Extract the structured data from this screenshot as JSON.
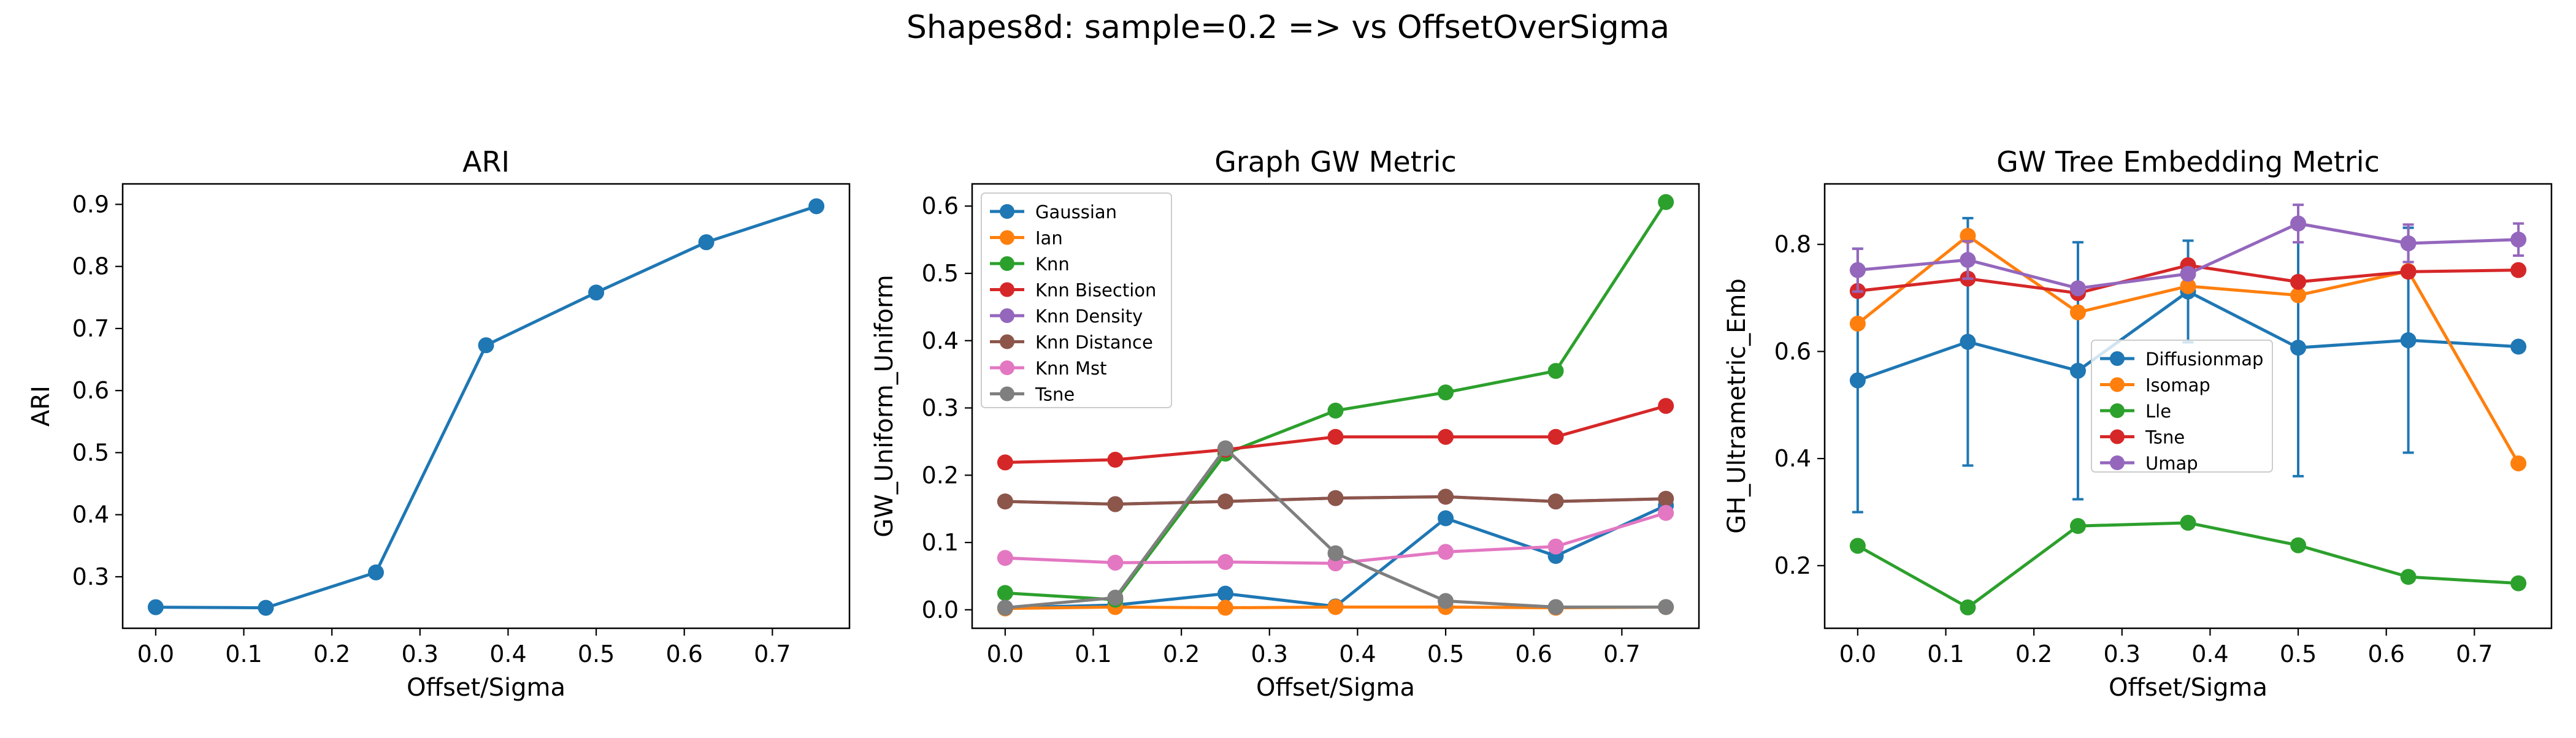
{
  "suptitle": "Shapes8d: sample=0.2 => vs OffsetOverSigma",
  "colors": {
    "C0": "#1f77b4",
    "C1": "#ff7f0e",
    "C2": "#2ca02c",
    "C3": "#d62728",
    "C4": "#9467bd",
    "C5": "#8c564b",
    "C6": "#e377c2",
    "C7": "#7f7f7f"
  },
  "chart_data": [
    {
      "type": "line",
      "title": "ARI",
      "xlabel": "Offset/Sigma",
      "ylabel": "ARI",
      "xlim": [
        -0.0375,
        0.7875
      ],
      "ylim": [
        0.217,
        0.933
      ],
      "xticks": [
        0.0,
        0.1,
        0.2,
        0.3,
        0.4,
        0.5,
        0.6,
        0.7
      ],
      "xtick_labels": [
        "0.0",
        "0.1",
        "0.2",
        "0.3",
        "0.4",
        "0.5",
        "0.6",
        "0.7"
      ],
      "yticks": [
        0.3,
        0.4,
        0.5,
        0.6,
        0.7,
        0.8,
        0.9
      ],
      "ytick_labels": [
        "0.3",
        "0.4",
        "0.5",
        "0.6",
        "0.7",
        "0.8",
        "0.9"
      ],
      "grid": false,
      "legend": null,
      "x": [
        0.0,
        0.125,
        0.25,
        0.375,
        0.5,
        0.625,
        0.75
      ],
      "series": [
        {
          "color": "#1f77b4",
          "values": [
            0.251,
            0.25,
            0.307,
            0.673,
            0.758,
            0.839,
            0.897
          ]
        }
      ]
    },
    {
      "type": "line",
      "title": "Graph GW Metric",
      "xlabel": "Offset/Sigma",
      "ylabel": "GW_Uniform_Uniform",
      "xlim": [
        -0.0375,
        0.7875
      ],
      "ylim": [
        -0.0275,
        0.633
      ],
      "xticks": [
        0.0,
        0.1,
        0.2,
        0.3,
        0.4,
        0.5,
        0.6,
        0.7
      ],
      "xtick_labels": [
        "0.0",
        "0.1",
        "0.2",
        "0.3",
        "0.4",
        "0.5",
        "0.6",
        "0.7"
      ],
      "yticks": [
        0.0,
        0.1,
        0.2,
        0.3,
        0.4,
        0.5,
        0.6
      ],
      "ytick_labels": [
        "0.0",
        "0.1",
        "0.2",
        "0.3",
        "0.4",
        "0.5",
        "0.6"
      ],
      "grid": false,
      "legend": "upper left",
      "x": [
        0.0,
        0.125,
        0.25,
        0.375,
        0.5,
        0.625,
        0.75
      ],
      "series": [
        {
          "name": "Gaussian",
          "color": "#1f77b4",
          "values": [
            0.003,
            0.007,
            0.024,
            0.005,
            0.136,
            0.08,
            0.155
          ]
        },
        {
          "name": "Ian",
          "color": "#ff7f0e",
          "values": [
            0.002,
            0.004,
            0.003,
            0.004,
            0.004,
            0.003,
            0.004
          ]
        },
        {
          "name": "Knn",
          "color": "#2ca02c",
          "values": [
            0.025,
            0.015,
            0.232,
            0.296,
            0.323,
            0.355,
            0.606
          ]
        },
        {
          "name": "Knn Bisection",
          "color": "#d62728",
          "values": [
            0.219,
            0.223,
            0.238,
            0.257,
            0.257,
            0.257,
            0.303
          ]
        },
        {
          "name": "Knn Density",
          "color": "#9467bd",
          "values": [
            0.161,
            0.157,
            0.161,
            0.166,
            0.168,
            0.161,
            0.165
          ]
        },
        {
          "name": "Knn Distance",
          "color": "#8c564b",
          "values": [
            0.161,
            0.157,
            0.161,
            0.166,
            0.168,
            0.161,
            0.165
          ]
        },
        {
          "name": "Knn Mst",
          "color": "#e377c2",
          "values": [
            0.077,
            0.07,
            0.071,
            0.069,
            0.086,
            0.094,
            0.144
          ]
        },
        {
          "name": "Tsne",
          "color": "#7f7f7f",
          "values": [
            0.003,
            0.018,
            0.24,
            0.084,
            0.013,
            0.004,
            0.004
          ]
        }
      ]
    },
    {
      "type": "line",
      "title": "GW Tree Embedding Metric",
      "xlabel": "Offset/Sigma",
      "ylabel": "GH_Ultrametric_Emb",
      "xlim": [
        -0.0375,
        0.7875
      ],
      "ylim": [
        0.083,
        0.913
      ],
      "xticks": [
        0.0,
        0.1,
        0.2,
        0.3,
        0.4,
        0.5,
        0.6,
        0.7
      ],
      "xtick_labels": [
        "0.0",
        "0.1",
        "0.2",
        "0.3",
        "0.4",
        "0.5",
        "0.6",
        "0.7"
      ],
      "yticks": [
        0.2,
        0.4,
        0.6,
        0.8
      ],
      "ytick_labels": [
        "0.2",
        "0.4",
        "0.6",
        "0.8"
      ],
      "grid": false,
      "legend": "center",
      "x": [
        0.0,
        0.125,
        0.25,
        0.375,
        0.5,
        0.625,
        0.75
      ],
      "series": [
        {
          "name": "Diffusionmap",
          "color": "#1f77b4",
          "values": [
            0.546,
            0.618,
            0.564,
            0.712,
            0.607,
            0.621,
            0.609
          ],
          "err": [
            0.246,
            0.231,
            0.24,
            0.095,
            0.24,
            0.21,
            0.0
          ]
        },
        {
          "name": "Isomap",
          "color": "#ff7f0e",
          "values": [
            0.652,
            0.816,
            0.673,
            0.722,
            0.705,
            0.75,
            0.391
          ],
          "err": [
            0,
            0,
            0,
            0,
            0,
            0,
            0
          ]
        },
        {
          "name": "Lle",
          "color": "#2ca02c",
          "values": [
            0.237,
            0.122,
            0.274,
            0.28,
            0.238,
            0.179,
            0.167
          ],
          "err": [
            0,
            0,
            0,
            0,
            0,
            0,
            0
          ]
        },
        {
          "name": "Tsne",
          "color": "#d62728",
          "values": [
            0.713,
            0.736,
            0.709,
            0.761,
            0.73,
            0.749,
            0.752
          ],
          "err": [
            0,
            0,
            0,
            0,
            0,
            0,
            0
          ]
        },
        {
          "name": "Umap",
          "color": "#9467bd",
          "values": [
            0.752,
            0.771,
            0.718,
            0.745,
            0.839,
            0.802,
            0.809
          ],
          "err": [
            0.04,
            0.035,
            0.0,
            0.0,
            0.035,
            0.035,
            0.03
          ]
        }
      ]
    }
  ]
}
